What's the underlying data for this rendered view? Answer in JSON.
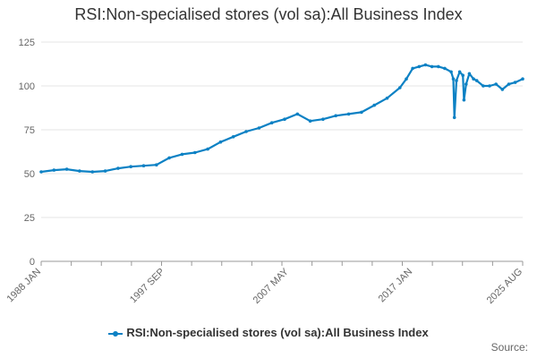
{
  "chart_data": {
    "type": "line",
    "title": "RSI:Non-specialised stores (vol sa):All Business Index",
    "xlabel": "",
    "ylabel": "",
    "x_range": [
      "1988 JAN",
      "2025 AUG"
    ],
    "x_tick_labels": [
      "1988 JAN",
      "1997 SEP",
      "2007 MAY",
      "2017 JAN",
      "2025 AUG"
    ],
    "ylim": [
      0,
      125
    ],
    "y_ticks": [
      0,
      25,
      50,
      75,
      100,
      125
    ],
    "grid": true,
    "legend_position": "bottom",
    "series": [
      {
        "name": "RSI:Non-specialised stores (vol sa):All Business Index",
        "color": "#0c81c4",
        "points": [
          {
            "x": "1988 JAN",
            "y": 51
          },
          {
            "x": "1989 JAN",
            "y": 52
          },
          {
            "x": "1990 JAN",
            "y": 52.5
          },
          {
            "x": "1991 JAN",
            "y": 51.5
          },
          {
            "x": "1992 JAN",
            "y": 51
          },
          {
            "x": "1993 JAN",
            "y": 51.5
          },
          {
            "x": "1994 JAN",
            "y": 53
          },
          {
            "x": "1995 JAN",
            "y": 54
          },
          {
            "x": "1996 JAN",
            "y": 54.5
          },
          {
            "x": "1997 JAN",
            "y": 55
          },
          {
            "x": "1998 JAN",
            "y": 59
          },
          {
            "x": "1999 JAN",
            "y": 61
          },
          {
            "x": "2000 JAN",
            "y": 62
          },
          {
            "x": "2001 JAN",
            "y": 64
          },
          {
            "x": "2002 JAN",
            "y": 68
          },
          {
            "x": "2003 JAN",
            "y": 71
          },
          {
            "x": "2004 JAN",
            "y": 74
          },
          {
            "x": "2005 JAN",
            "y": 76
          },
          {
            "x": "2006 JAN",
            "y": 79
          },
          {
            "x": "2007 JAN",
            "y": 81
          },
          {
            "x": "2008 JAN",
            "y": 84
          },
          {
            "x": "2009 JAN",
            "y": 80
          },
          {
            "x": "2010 JAN",
            "y": 81
          },
          {
            "x": "2011 JAN",
            "y": 83
          },
          {
            "x": "2012 JAN",
            "y": 84
          },
          {
            "x": "2013 JAN",
            "y": 85
          },
          {
            "x": "2014 JAN",
            "y": 89
          },
          {
            "x": "2015 JAN",
            "y": 93
          },
          {
            "x": "2016 JAN",
            "y": 99
          },
          {
            "x": "2016 JUL",
            "y": 104
          },
          {
            "x": "2017 JAN",
            "y": 110
          },
          {
            "x": "2017 JUL",
            "y": 111
          },
          {
            "x": "2018 JAN",
            "y": 112
          },
          {
            "x": "2018 JUL",
            "y": 111
          },
          {
            "x": "2019 JAN",
            "y": 111
          },
          {
            "x": "2019 JUL",
            "y": 110
          },
          {
            "x": "2020 JAN",
            "y": 108
          },
          {
            "x": "2020 MAR",
            "y": 104
          },
          {
            "x": "2020 APR",
            "y": 82
          },
          {
            "x": "2020 JUN",
            "y": 103
          },
          {
            "x": "2020 SEP",
            "y": 108
          },
          {
            "x": "2020 DEC",
            "y": 106
          },
          {
            "x": "2021 JAN",
            "y": 92
          },
          {
            "x": "2021 MAR",
            "y": 101
          },
          {
            "x": "2021 JUN",
            "y": 107
          },
          {
            "x": "2021 OCT",
            "y": 104
          },
          {
            "x": "2022 JAN",
            "y": 103
          },
          {
            "x": "2022 JUL",
            "y": 100
          },
          {
            "x": "2023 JAN",
            "y": 100
          },
          {
            "x": "2023 JUL",
            "y": 101
          },
          {
            "x": "2024 JAN",
            "y": 98
          },
          {
            "x": "2024 JUL",
            "y": 101
          },
          {
            "x": "2025 JAN",
            "y": 102
          },
          {
            "x": "2025 AUG",
            "y": 104
          }
        ]
      }
    ]
  },
  "legend": {
    "label": "RSI:Non-specialised stores (vol sa):All Business Index"
  },
  "footer": {
    "source_label": "Source:"
  }
}
